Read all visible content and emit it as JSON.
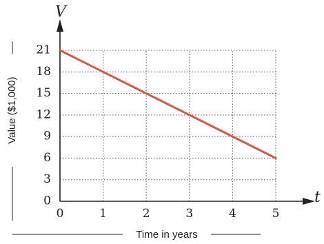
{
  "chart_data": {
    "type": "line",
    "x": [
      0,
      5
    ],
    "series": [
      {
        "values": [
          21,
          6
        ],
        "color": "#d9534f"
      }
    ],
    "x_ticks": [
      "0",
      "1",
      "2",
      "3",
      "4",
      "5"
    ],
    "y_ticks": [
      "0",
      "3",
      "6",
      "9",
      "12",
      "15",
      "18",
      "21"
    ],
    "xlim": [
      0,
      5
    ],
    "ylim": [
      0,
      21
    ],
    "x_var": "t",
    "y_var": "V",
    "xlabel": "Time in years",
    "ylabel": "Value ($1,000)",
    "grid": true,
    "grid_style": "dotted"
  }
}
